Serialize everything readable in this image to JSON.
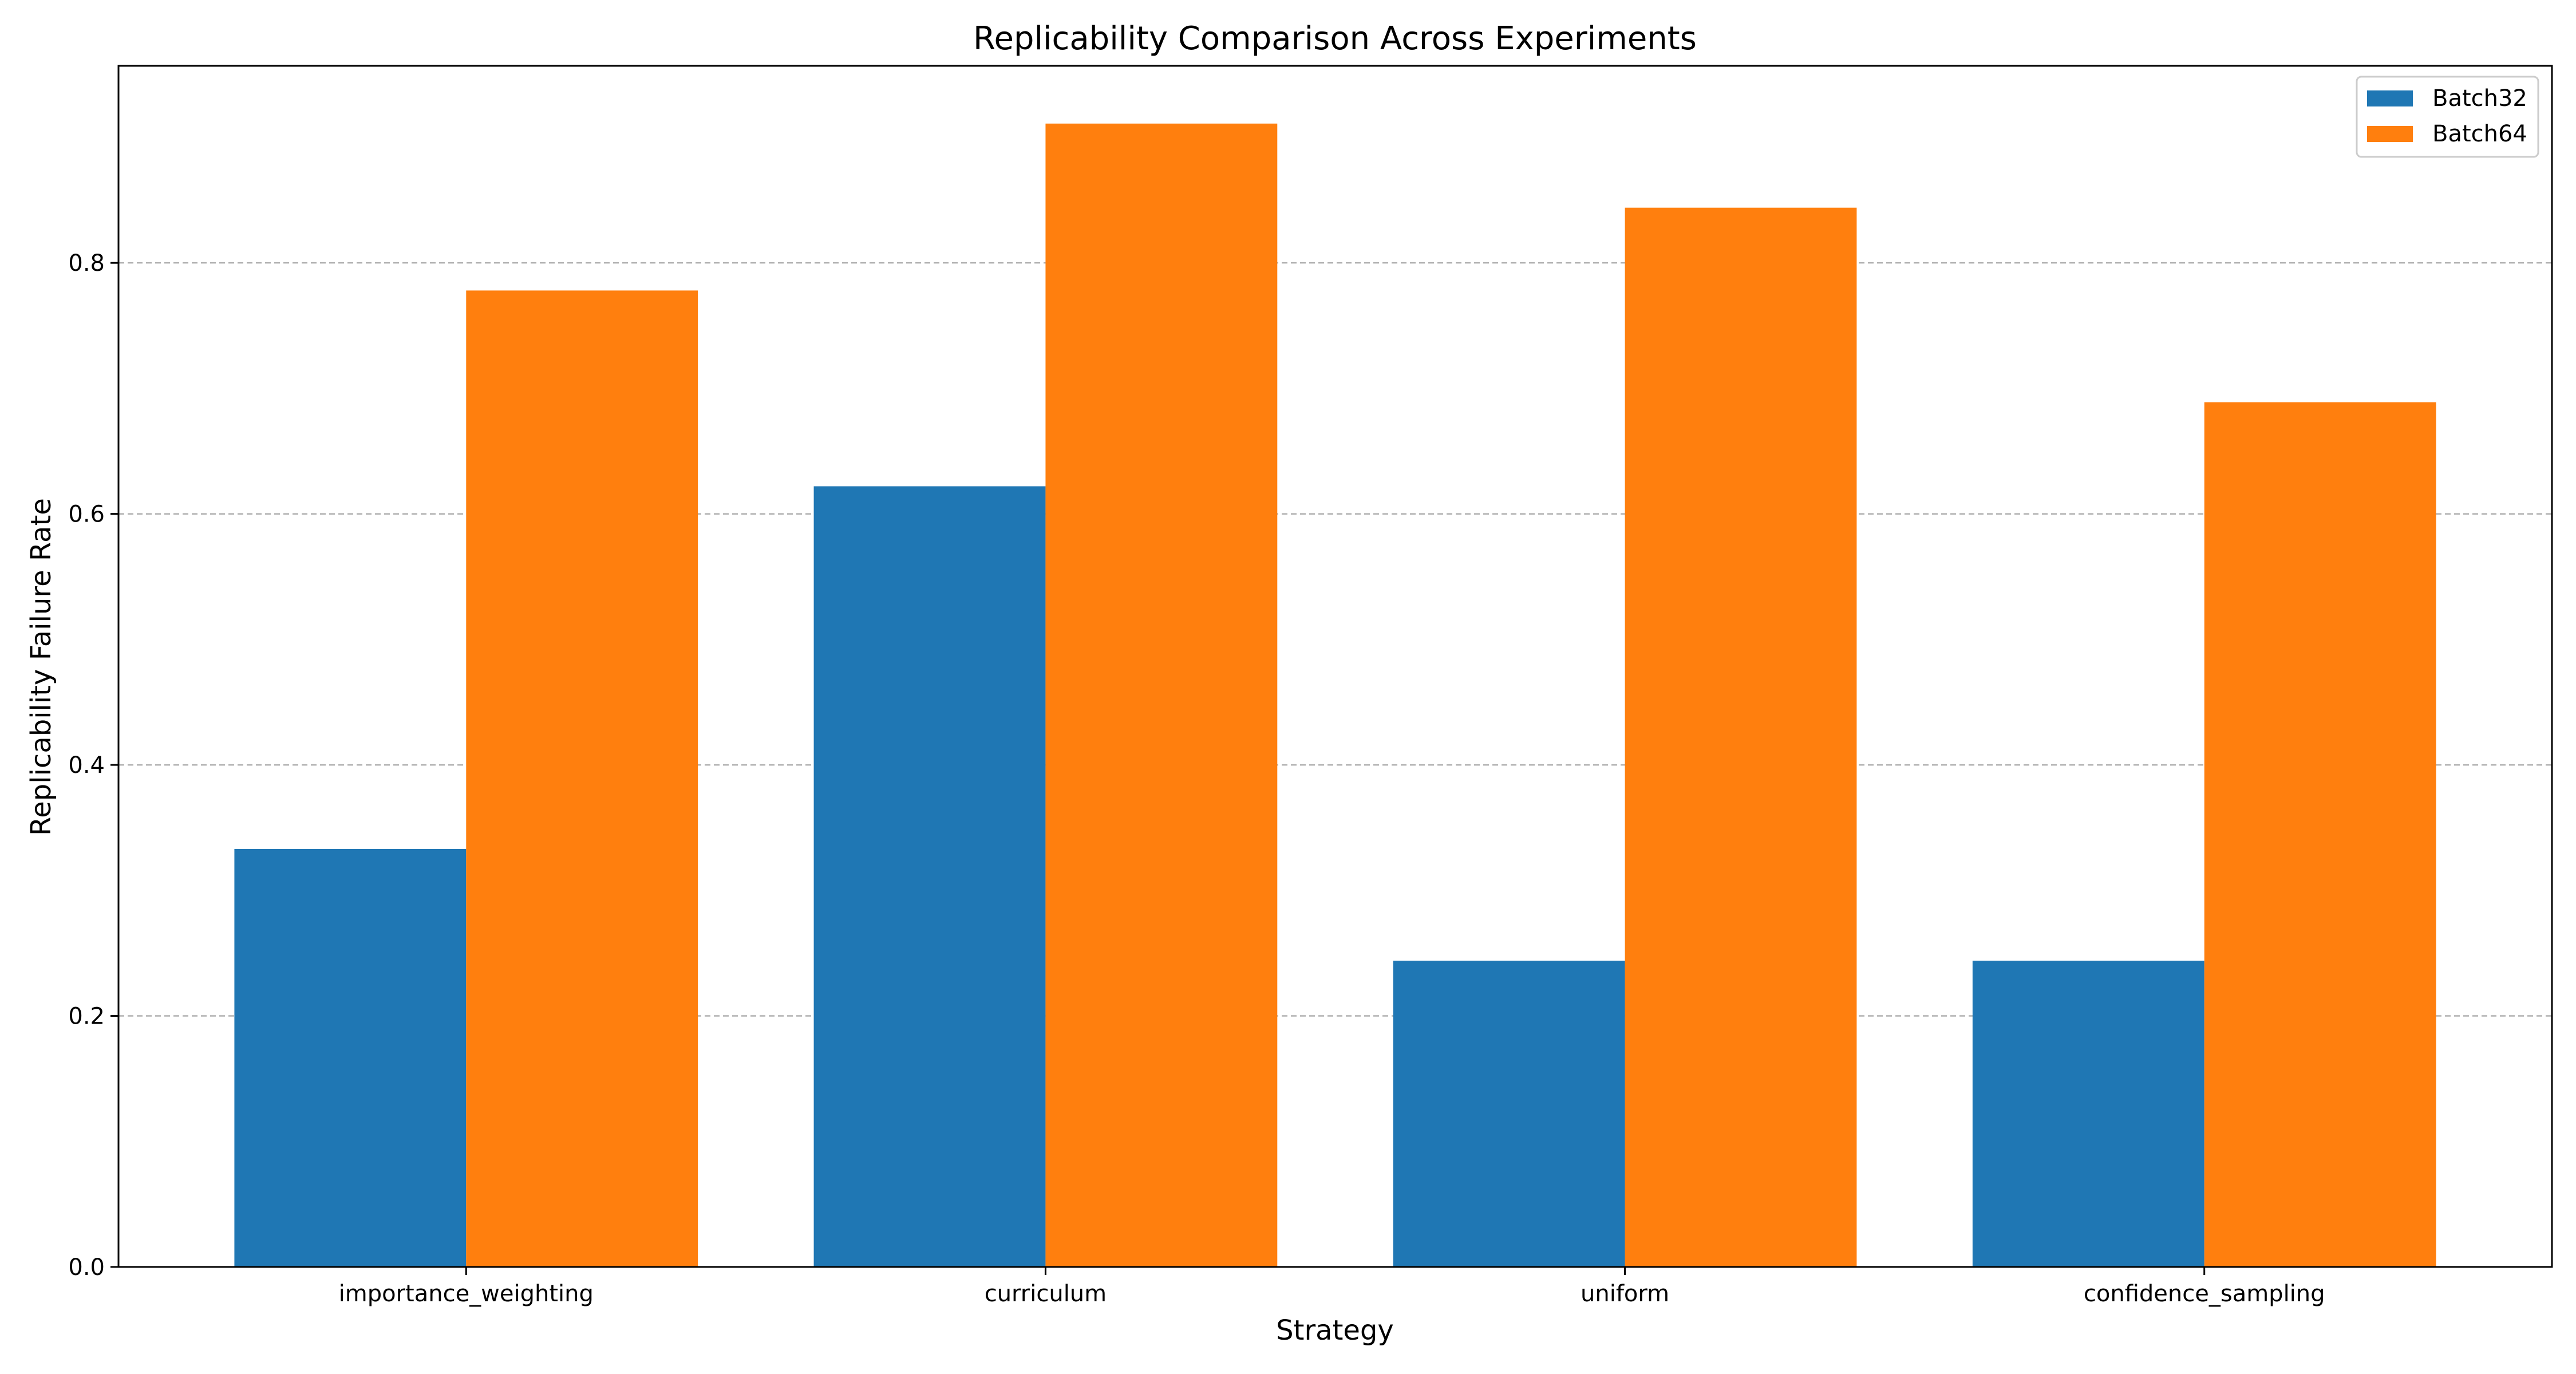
{
  "chart_data": {
    "type": "bar",
    "title": "Replicability Comparison Across Experiments",
    "xlabel": "Strategy",
    "ylabel": "Replicability Failure Rate",
    "categories": [
      "importance_weighting",
      "curriculum",
      "uniform",
      "confidence_sampling"
    ],
    "series": [
      {
        "name": "Batch32",
        "color": "#1f77b4",
        "values": [
          0.333,
          0.622,
          0.244,
          0.244
        ]
      },
      {
        "name": "Batch64",
        "color": "#ff7f0e",
        "values": [
          0.778,
          0.911,
          0.844,
          0.689
        ]
      }
    ],
    "ylim": [
      0,
      0.957
    ],
    "yticks": [
      0.0,
      0.2,
      0.4,
      0.6,
      0.8
    ],
    "ytick_labels": [
      "0.0",
      "0.2",
      "0.4",
      "0.6",
      "0.8"
    ],
    "grid": "y-dashed",
    "legend_position": "top-right"
  }
}
